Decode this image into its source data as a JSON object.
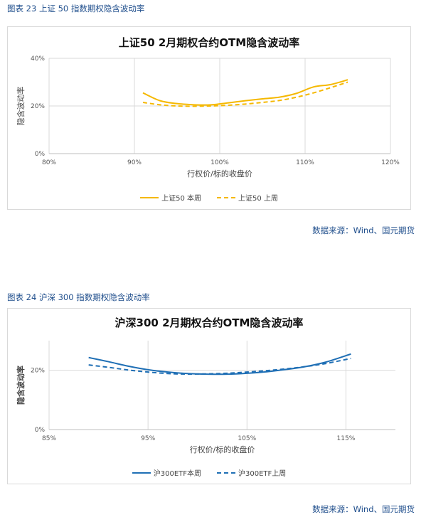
{
  "charts_meta": [
    {
      "caption": "图表 23  上证 50 指数期权隐含波动率",
      "source": "数据来源：Wind、国元期货"
    },
    {
      "caption": "图表 24  沪深 300 指数期权隐含波动率",
      "source": "数据来源：Wind、国元期货"
    }
  ],
  "chart_data": [
    {
      "type": "line",
      "title": "上证50 2月期权合约OTM隐含波动率",
      "xlabel": "行权价/标的收盘价",
      "ylabel": "隐含波动率",
      "xlim": [
        0.8,
        1.2
      ],
      "ylim": [
        0,
        0.4
      ],
      "x_ticks": [
        0.8,
        0.9,
        1.0,
        1.1,
        1.2
      ],
      "x_tick_labels": [
        "80%",
        "90%",
        "100%",
        "110%",
        "120%"
      ],
      "y_ticks": [
        0,
        0.2,
        0.4
      ],
      "y_tick_labels": [
        "0%",
        "20%",
        "40%"
      ],
      "grid": "vertical+horizontal",
      "legend": "bottom",
      "series": [
        {
          "name": "上证50 本周",
          "style": "solid",
          "color": "#f5b800",
          "x": [
            0.91,
            0.93,
            0.95,
            0.97,
            0.99,
            1.01,
            1.03,
            1.05,
            1.07,
            1.09,
            1.11,
            1.13,
            1.15
          ],
          "y": [
            0.255,
            0.222,
            0.21,
            0.205,
            0.205,
            0.213,
            0.222,
            0.23,
            0.237,
            0.253,
            0.28,
            0.29,
            0.31
          ]
        },
        {
          "name": "上证50 上周",
          "style": "dashed",
          "color": "#f5b800",
          "x": [
            0.91,
            0.93,
            0.95,
            0.97,
            0.99,
            1.01,
            1.03,
            1.05,
            1.07,
            1.09,
            1.11,
            1.13,
            1.15
          ],
          "y": [
            0.215,
            0.205,
            0.2,
            0.199,
            0.2,
            0.203,
            0.208,
            0.215,
            0.223,
            0.237,
            0.255,
            0.277,
            0.3
          ]
        }
      ]
    },
    {
      "type": "line",
      "title": "沪深300 2月期权合约OTM隐含波动率",
      "xlabel": "行权价/标的收盘价",
      "ylabel": "隐含波动率",
      "xlim": [
        0.85,
        1.2
      ],
      "ylim": [
        0,
        0.3
      ],
      "x_ticks": [
        0.85,
        0.95,
        1.05,
        1.15
      ],
      "x_tick_labels": [
        "85%",
        "95%",
        "105%",
        "115%"
      ],
      "y_ticks": [
        0,
        0.2
      ],
      "y_tick_labels": [
        "0%",
        "20%"
      ],
      "grid": "vertical+horizontal",
      "legend": "bottom",
      "series": [
        {
          "name": "沪300ETF本周",
          "style": "solid",
          "color": "#1f6fb5",
          "x": [
            0.89,
            0.91,
            0.93,
            0.95,
            0.97,
            0.99,
            1.01,
            1.03,
            1.05,
            1.07,
            1.09,
            1.11,
            1.13,
            1.155
          ],
          "y": [
            0.243,
            0.229,
            0.214,
            0.202,
            0.194,
            0.189,
            0.187,
            0.187,
            0.19,
            0.195,
            0.203,
            0.213,
            0.228,
            0.255
          ]
        },
        {
          "name": "沪300ETF上周",
          "style": "dashed",
          "color": "#1f6fb5",
          "x": [
            0.89,
            0.91,
            0.93,
            0.95,
            0.97,
            0.99,
            1.01,
            1.03,
            1.05,
            1.07,
            1.09,
            1.11,
            1.13,
            1.155
          ],
          "y": [
            0.218,
            0.21,
            0.201,
            0.194,
            0.189,
            0.187,
            0.188,
            0.19,
            0.194,
            0.199,
            0.205,
            0.213,
            0.223,
            0.24
          ]
        }
      ]
    }
  ]
}
